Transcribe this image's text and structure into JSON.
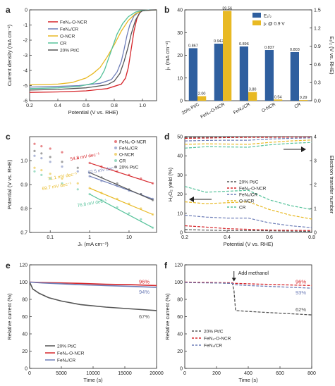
{
  "colors": {
    "FeN4_O_NCR": "#d6262b",
    "FeN4_CR": "#6e7eb8",
    "O_NCR": "#e8b923",
    "CR": "#55c29a",
    "Pt_C": "#555555",
    "bar_E": "#2f5f9f",
    "bar_jk": "#e8b923"
  },
  "chart_data": [
    {
      "panel": "a",
      "type": "line",
      "xlabel": "Potential (V vs. RHE)",
      "ylabel": "Current density (mA cm⁻²)",
      "xlim": [
        0.2,
        1.1
      ],
      "ylim": [
        -6,
        0
      ],
      "xticks": [
        "0.2",
        "0.4",
        "0.6",
        "0.8",
        "1.0"
      ],
      "yticks": [
        "-6",
        "-5",
        "-4",
        "-3",
        "-2",
        "-1",
        "0"
      ],
      "series": [
        {
          "name": "FeN₄-O-NCR",
          "key": "FeN4_O_NCR",
          "x": [
            0.2,
            0.4,
            0.6,
            0.75,
            0.85,
            0.88,
            0.9,
            0.92,
            0.94,
            0.96,
            0.98,
            1.0,
            1.05,
            1.1
          ],
          "y": [
            -5.45,
            -5.42,
            -5.35,
            -5.2,
            -4.9,
            -4.5,
            -3.8,
            -2.6,
            -1.4,
            -0.6,
            -0.2,
            -0.05,
            0,
            0
          ]
        },
        {
          "name": "FeN₄/CR",
          "key": "FeN4_CR",
          "x": [
            0.2,
            0.4,
            0.55,
            0.7,
            0.78,
            0.82,
            0.85,
            0.87,
            0.89,
            0.91,
            0.94,
            0.98,
            1.05,
            1.1
          ],
          "y": [
            -5.1,
            -5.05,
            -5.0,
            -4.85,
            -4.6,
            -4.1,
            -3.4,
            -2.6,
            -1.7,
            -1.0,
            -0.4,
            -0.1,
            0,
            0
          ]
        },
        {
          "name": "O-NCR",
          "key": "O_NCR",
          "x": [
            0.2,
            0.4,
            0.5,
            0.6,
            0.65,
            0.7,
            0.75,
            0.8,
            0.85,
            0.9,
            0.95,
            1.0,
            1.1
          ],
          "y": [
            -4.95,
            -4.9,
            -4.8,
            -4.5,
            -4.2,
            -3.8,
            -3.1,
            -2.3,
            -1.4,
            -0.7,
            -0.25,
            -0.05,
            0
          ]
        },
        {
          "name": "CR",
          "key": "CR",
          "x": [
            0.2,
            0.4,
            0.55,
            0.65,
            0.7,
            0.73,
            0.76,
            0.79,
            0.82,
            0.86,
            0.9,
            0.95,
            1.0,
            1.1
          ],
          "y": [
            -5.2,
            -5.15,
            -5.05,
            -4.85,
            -4.5,
            -4.0,
            -3.2,
            -2.4,
            -1.6,
            -0.9,
            -0.45,
            -0.15,
            -0.03,
            0
          ]
        },
        {
          "name": "20% Pt/C",
          "key": "Pt_C",
          "x": [
            0.2,
            0.4,
            0.6,
            0.75,
            0.8,
            0.84,
            0.87,
            0.9,
            0.92,
            0.95,
            0.98,
            1.0,
            1.1
          ],
          "y": [
            -5.3,
            -5.25,
            -5.15,
            -4.95,
            -4.7,
            -4.2,
            -3.4,
            -2.4,
            -1.6,
            -0.7,
            -0.2,
            -0.05,
            0
          ]
        }
      ]
    },
    {
      "panel": "b",
      "type": "bar",
      "categories": [
        "20% Pt/C",
        "FeN₄-O-NCR",
        "FeN₄/CR",
        "O-NCR",
        "CR"
      ],
      "ylabel": "jₖ (mA cm⁻²)",
      "y2label": "E₁/₂ (V vs. RHE)",
      "ylim": [
        0,
        40
      ],
      "y2lim": [
        0,
        1.5
      ],
      "yticks": [
        "0",
        "10",
        "20",
        "30",
        "40"
      ],
      "y2ticks": [
        "0.0",
        "0.3",
        "0.6",
        "0.9",
        "1.2",
        "1.5"
      ],
      "series": [
        {
          "name": "E₁/₂",
          "axis": "right",
          "values": [
            0.867,
            0.942,
            0.896,
            0.837,
            0.803
          ],
          "labels": [
            "0.867",
            "0.942",
            "0.896",
            "0.837",
            "0.803"
          ]
        },
        {
          "name": "jₖ @ 0.9 V",
          "axis": "left",
          "values": [
            2.0,
            39.56,
            3.8,
            0.54,
            0.29
          ],
          "labels": [
            "2.00",
            "39.56",
            "3.80",
            "0.54",
            "0.29"
          ]
        }
      ]
    },
    {
      "panel": "c",
      "type": "scatter",
      "xlabel": "Jₖ (mA cm⁻²)",
      "ylabel": "Potential (V vs. RHE)",
      "xscale": "log",
      "xlim": [
        0.03,
        50
      ],
      "ylim": [
        0.7,
        1.1
      ],
      "xticks": [
        "0.1",
        "1",
        "10"
      ],
      "yticks": [
        "0.7",
        "0.8",
        "0.9",
        "1.0"
      ],
      "annotations": [
        "54.3 mV dec⁻¹",
        "62.5 mV dec⁻¹",
        "71.1 mV dec⁻¹",
        "69.7 mV dec⁻¹",
        "76.8 mV dec⁻¹"
      ],
      "series": [
        {
          "name": "FeN₄-O-NCR",
          "key": "FeN4_O_NCR",
          "x": [
            0.04,
            0.06,
            0.1,
            0.2,
            0.5,
            1,
            2,
            5,
            10,
            20,
            40
          ],
          "y": [
            1.07,
            1.06,
            1.05,
            1.035,
            1.01,
            0.99,
            0.975,
            0.955,
            0.94,
            0.925,
            0.905
          ]
        },
        {
          "name": "FeN₄/CR",
          "key": "FeN4_CR",
          "x": [
            0.04,
            0.06,
            0.1,
            0.2,
            0.5,
            1,
            2,
            5,
            10,
            20,
            40
          ],
          "y": [
            1.02,
            1.01,
            0.995,
            0.975,
            0.955,
            0.935,
            0.915,
            0.895,
            0.875,
            0.86,
            0.84
          ]
        },
        {
          "name": "O-NCR",
          "key": "O_NCR",
          "x": [
            0.04,
            0.06,
            0.1,
            0.2,
            0.5,
            1,
            2,
            5,
            10,
            20,
            40
          ],
          "y": [
            0.97,
            0.96,
            0.945,
            0.925,
            0.905,
            0.885,
            0.865,
            0.84,
            0.82,
            0.8,
            0.775
          ]
        },
        {
          "name": "CR",
          "key": "CR",
          "x": [
            0.04,
            0.06,
            0.1,
            0.2,
            0.5,
            1,
            2,
            5,
            10,
            20,
            40
          ],
          "y": [
            0.955,
            0.94,
            0.925,
            0.905,
            0.88,
            0.86,
            0.835,
            0.805,
            0.78,
            0.755,
            0.72
          ]
        },
        {
          "name": "20% Pt/C",
          "key": "Pt_C",
          "x": [
            0.04,
            0.06,
            0.1,
            0.2,
            0.5,
            1,
            2,
            5,
            10,
            20,
            40
          ],
          "y": [
            1.04,
            1.03,
            1.015,
            0.995,
            0.97,
            0.95,
            0.93,
            0.905,
            0.88,
            0.86,
            0.835
          ]
        }
      ]
    },
    {
      "panel": "d",
      "type": "line",
      "xlabel": "Potential (V vs. RHE)",
      "ylabel": "H₂O₂ yield (%)",
      "y2label": "Electron transfer number",
      "xlim": [
        0.2,
        0.8
      ],
      "ylim": [
        0,
        50
      ],
      "y2lim": [
        0,
        4
      ],
      "xticks": [
        "0.2",
        "0.4",
        "0.6",
        "0.8"
      ],
      "yticks": [
        "0",
        "10",
        "20",
        "30",
        "40",
        "50"
      ],
      "y2ticks": [
        "0",
        "1",
        "2",
        "3",
        "4"
      ],
      "series": [
        {
          "name": "20% Pt/C",
          "key": "Pt_C",
          "x": [
            0.2,
            0.3,
            0.4,
            0.5,
            0.6,
            0.7,
            0.8
          ],
          "yield": [
            1.5,
            1.2,
            1.0,
            1.0,
            0.9,
            0.7,
            0.5
          ],
          "n": [
            3.97,
            3.98,
            3.98,
            3.98,
            3.98,
            3.99,
            3.99
          ]
        },
        {
          "name": "FeN₄-O-NCR",
          "key": "FeN4_O_NCR",
          "x": [
            0.2,
            0.3,
            0.4,
            0.5,
            0.6,
            0.7,
            0.8
          ],
          "yield": [
            3.5,
            2.8,
            2.0,
            1.6,
            1.3,
            1.1,
            1.0
          ],
          "n": [
            3.93,
            3.94,
            3.96,
            3.97,
            3.97,
            3.98,
            3.98
          ]
        },
        {
          "name": "FeN₄/CR",
          "key": "FeN4_CR",
          "x": [
            0.2,
            0.3,
            0.4,
            0.5,
            0.6,
            0.7,
            0.8
          ],
          "yield": [
            9.0,
            8.0,
            7.5,
            7.5,
            5.0,
            3.5,
            2.5
          ],
          "n": [
            3.82,
            3.84,
            3.85,
            3.85,
            3.9,
            3.93,
            3.95
          ]
        },
        {
          "name": "O-NCR",
          "key": "O_NCR",
          "x": [
            0.2,
            0.3,
            0.4,
            0.5,
            0.6,
            0.7,
            0.8
          ],
          "yield": [
            16.0,
            15.0,
            15.5,
            16.0,
            12.0,
            9.0,
            7.0
          ],
          "n": [
            3.68,
            3.7,
            3.69,
            3.68,
            3.76,
            3.82,
            3.86
          ]
        },
        {
          "name": "CR",
          "key": "CR",
          "x": [
            0.2,
            0.3,
            0.4,
            0.5,
            0.6,
            0.7,
            0.8
          ],
          "yield": [
            24.0,
            21.0,
            21.5,
            22.0,
            17.0,
            14.0,
            12.0
          ],
          "n": [
            3.52,
            3.58,
            3.57,
            3.56,
            3.66,
            3.72,
            3.76
          ]
        }
      ]
    },
    {
      "panel": "e",
      "type": "line",
      "xlabel": "Time (s)",
      "ylabel": "Relative current (%)",
      "xlim": [
        0,
        20000
      ],
      "ylim": [
        0,
        120
      ],
      "xticks": [
        "0",
        "5000",
        "10000",
        "15000",
        "20000"
      ],
      "yticks": [
        "0",
        "20",
        "40",
        "60",
        "80",
        "100",
        "120"
      ],
      "end_labels": [
        "96%",
        "94%",
        "67%"
      ],
      "series": [
        {
          "name": "20% Pt/C",
          "key": "Pt_C",
          "x": [
            0,
            500,
            1500,
            3000,
            5000,
            8000,
            12000,
            16000,
            20000
          ],
          "y": [
            100,
            92,
            87,
            82,
            78,
            74,
            71,
            69,
            67
          ]
        },
        {
          "name": "FeN₄-O-NCR",
          "key": "FeN4_O_NCR",
          "x": [
            0,
            2000,
            5000,
            8000,
            12000,
            16000,
            20000
          ],
          "y": [
            100,
            99.5,
            99,
            98.5,
            97.5,
            97,
            96
          ]
        },
        {
          "name": "FeN₄/CR",
          "key": "FeN4_CR",
          "x": [
            0,
            2000,
            5000,
            8000,
            12000,
            16000,
            20000
          ],
          "y": [
            100,
            99,
            98,
            97,
            96,
            95,
            94
          ]
        }
      ]
    },
    {
      "panel": "f",
      "type": "line",
      "xlabel": "Time (s)",
      "ylabel": "Relative current (%)",
      "xlim": [
        0,
        800
      ],
      "ylim": [
        0,
        120
      ],
      "xticks": [
        "0",
        "200",
        "400",
        "600",
        "800"
      ],
      "yticks": [
        "0",
        "20",
        "40",
        "60",
        "80",
        "100",
        "120"
      ],
      "annotation": "Add methanol",
      "end_labels": [
        "96%",
        "93%",
        "62%"
      ],
      "series": [
        {
          "name": "20% Pt/C",
          "key": "Pt_C",
          "x": [
            0,
            100,
            200,
            300,
            310,
            320,
            400,
            500,
            600,
            700,
            800
          ],
          "y": [
            100,
            99.5,
            99,
            98.5,
            90,
            67,
            66,
            65,
            64,
            63,
            62
          ]
        },
        {
          "name": "FeN₄-O-NCR",
          "key": "FeN4_O_NCR",
          "x": [
            0,
            100,
            200,
            300,
            310,
            320,
            400,
            600,
            800
          ],
          "y": [
            100,
            99.8,
            99.5,
            99.3,
            98,
            98.5,
            98,
            97,
            96
          ]
        },
        {
          "name": "FeN₄/CR",
          "key": "FeN4_CR",
          "x": [
            0,
            100,
            200,
            300,
            310,
            320,
            400,
            600,
            800
          ],
          "y": [
            99.5,
            99.2,
            99,
            98.5,
            97,
            97,
            96,
            94.5,
            93
          ]
        }
      ]
    }
  ]
}
